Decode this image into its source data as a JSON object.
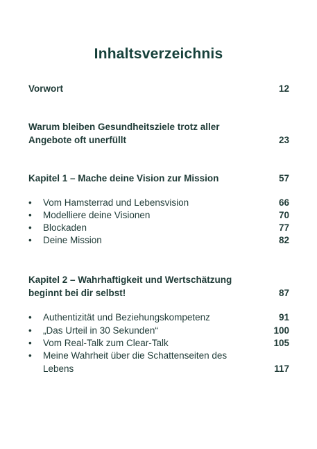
{
  "title": "Inhaltsverzeichnis",
  "bullet": "•",
  "entries": [
    {
      "text": "Vorwort",
      "page": "12"
    },
    {
      "text": "Warum bleiben Gesundheitsziele trotz aller Angebote oft unerfüllt",
      "page": "23"
    },
    {
      "text": "Kapitel 1 – Mache deine Vision zur Mission",
      "page": "57"
    },
    {
      "text": "Kapitel 2 – Wahrhaftigkeit und Wertschätzung beginnt bei dir selbst!",
      "page": "87"
    }
  ],
  "chapter1_items": [
    {
      "text": "Vom Hamsterrad und Lebensvision",
      "page": "66"
    },
    {
      "text": "Modelliere deine Visionen",
      "page": "70"
    },
    {
      "text": "Blockaden",
      "page": "77"
    },
    {
      "text": "Deine Mission",
      "page": "82"
    }
  ],
  "chapter2_items": [
    {
      "text": "Authentizität und Beziehungskompetenz",
      "page": "91"
    },
    {
      "text": "„Das Urteil in 30 Sekunden“",
      "page": "100"
    },
    {
      "text": "Vom Real-Talk zum Clear-Talk",
      "page": "105"
    },
    {
      "text": "Meine Wahrheit über die Schattenseiten des Lebens",
      "page": "117"
    }
  ]
}
